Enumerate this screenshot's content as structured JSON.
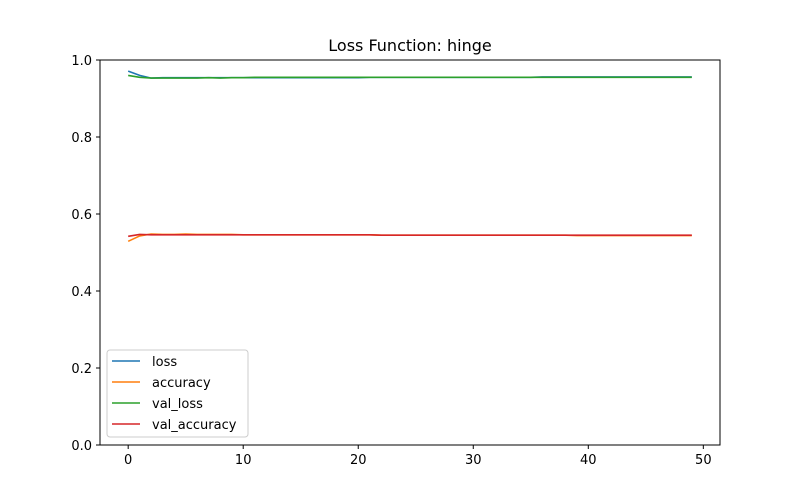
{
  "chart_data": {
    "type": "line",
    "title": "Loss Function: hinge",
    "xlabel": "",
    "ylabel": "",
    "xlim": [
      -2.45,
      51.45
    ],
    "ylim": [
      0.0,
      1.0
    ],
    "xticks": [
      0,
      10,
      20,
      30,
      40,
      50
    ],
    "yticks": [
      0.0,
      0.2,
      0.4,
      0.6,
      0.8,
      1.0
    ],
    "grid": false,
    "legend_position": "lower-left",
    "x": [
      0,
      1,
      2,
      3,
      4,
      5,
      6,
      7,
      8,
      9,
      10,
      11,
      12,
      13,
      14,
      15,
      16,
      17,
      18,
      19,
      20,
      21,
      22,
      23,
      24,
      25,
      26,
      27,
      28,
      29,
      30,
      31,
      32,
      33,
      34,
      35,
      36,
      37,
      38,
      39,
      40,
      41,
      42,
      43,
      44,
      45,
      46,
      47,
      48,
      49
    ],
    "series": [
      {
        "name": "loss",
        "color": "#1f77b4",
        "values": [
          0.971,
          0.96,
          0.953,
          0.954,
          0.954,
          0.954,
          0.954,
          0.954,
          0.954,
          0.954,
          0.954,
          0.954,
          0.954,
          0.954,
          0.954,
          0.954,
          0.954,
          0.954,
          0.954,
          0.954,
          0.954,
          0.955,
          0.955,
          0.955,
          0.955,
          0.955,
          0.955,
          0.955,
          0.955,
          0.955,
          0.955,
          0.955,
          0.955,
          0.955,
          0.955,
          0.955,
          0.956,
          0.956,
          0.956,
          0.956,
          0.956,
          0.956,
          0.956,
          0.956,
          0.956,
          0.956,
          0.956,
          0.956,
          0.956,
          0.956
        ]
      },
      {
        "name": "accuracy",
        "color": "#ff7f0e",
        "values": [
          0.529,
          0.543,
          0.548,
          0.547,
          0.547,
          0.548,
          0.547,
          0.547,
          0.547,
          0.547,
          0.546,
          0.546,
          0.546,
          0.546,
          0.546,
          0.546,
          0.546,
          0.546,
          0.546,
          0.546,
          0.546,
          0.546,
          0.545,
          0.545,
          0.545,
          0.545,
          0.545,
          0.545,
          0.545,
          0.545,
          0.545,
          0.545,
          0.545,
          0.545,
          0.545,
          0.545,
          0.545,
          0.545,
          0.545,
          0.544,
          0.544,
          0.544,
          0.544,
          0.544,
          0.544,
          0.544,
          0.544,
          0.544,
          0.544,
          0.544
        ]
      },
      {
        "name": "val_loss",
        "color": "#2ca02c",
        "values": [
          0.96,
          0.955,
          0.953,
          0.953,
          0.953,
          0.953,
          0.953,
          0.954,
          0.953,
          0.954,
          0.954,
          0.955,
          0.955,
          0.955,
          0.955,
          0.955,
          0.955,
          0.955,
          0.955,
          0.955,
          0.955,
          0.955,
          0.955,
          0.955,
          0.955,
          0.955,
          0.955,
          0.955,
          0.955,
          0.955,
          0.955,
          0.955,
          0.955,
          0.955,
          0.955,
          0.955,
          0.955,
          0.955,
          0.955,
          0.955,
          0.955,
          0.955,
          0.955,
          0.955,
          0.955,
          0.955,
          0.955,
          0.955,
          0.955,
          0.955
        ]
      },
      {
        "name": "val_accuracy",
        "color": "#d62728",
        "values": [
          0.542,
          0.547,
          0.546,
          0.546,
          0.546,
          0.546,
          0.546,
          0.546,
          0.546,
          0.546,
          0.546,
          0.546,
          0.546,
          0.546,
          0.546,
          0.546,
          0.546,
          0.546,
          0.546,
          0.546,
          0.546,
          0.546,
          0.545,
          0.545,
          0.545,
          0.545,
          0.545,
          0.545,
          0.545,
          0.545,
          0.545,
          0.545,
          0.545,
          0.545,
          0.545,
          0.545,
          0.545,
          0.545,
          0.545,
          0.545,
          0.545,
          0.545,
          0.545,
          0.545,
          0.545,
          0.545,
          0.545,
          0.545,
          0.545,
          0.545
        ]
      }
    ]
  }
}
